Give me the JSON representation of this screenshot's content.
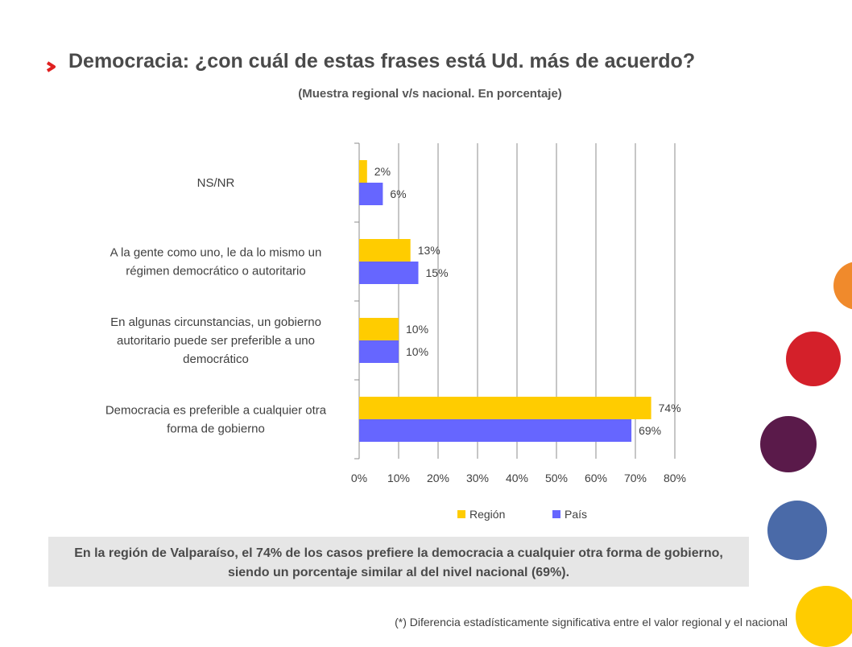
{
  "page": {
    "title": "Democracia: ¿con cuál de estas frases está Ud. más de acuerdo?",
    "subtitle": "(Muestra regional v/s nacional. En porcentaje)",
    "summary": "En la región de Valparaíso, el 74% de los casos prefiere la democracia a cualquier otra forma de gobierno, siendo un porcentaje similar al del nivel nacional (69%).",
    "footnote": "(*) Diferencia estadísticamente significativa entre el valor regional y el nacional"
  },
  "colors": {
    "region": "#ffcc00",
    "pais": "#6666ff",
    "accent_chevron": "#e02020",
    "deco_orange": "#f08a2c",
    "deco_red": "#d4202a",
    "deco_purple": "#5a1a4a",
    "deco_blue": "#4a6aa8",
    "deco_yellow": "#ffcc00"
  },
  "chart_data": {
    "type": "bar",
    "orientation": "horizontal",
    "categories": [
      [
        "NS/NR"
      ],
      [
        "A la gente como uno, le da lo mismo un",
        "régimen democrático o autoritario"
      ],
      [
        "En algunas circunstancias, un gobierno",
        "autoritario puede ser preferible a uno",
        "democrático"
      ],
      [
        "Democracia es preferible a cualquier otra",
        "forma de gobierno"
      ]
    ],
    "series": [
      {
        "name": "Región",
        "values": [
          2,
          13,
          10,
          74
        ],
        "labels": [
          "2%",
          "13%",
          "10%",
          "74%"
        ]
      },
      {
        "name": "País",
        "values": [
          6,
          15,
          10,
          69
        ],
        "labels": [
          "6%",
          "15%",
          "10%",
          "69%"
        ]
      }
    ],
    "xlim": [
      0,
      80
    ],
    "xticks": [
      "0%",
      "10%",
      "20%",
      "30%",
      "40%",
      "50%",
      "60%",
      "70%",
      "80%"
    ],
    "grid": true,
    "legend": "bottom"
  }
}
